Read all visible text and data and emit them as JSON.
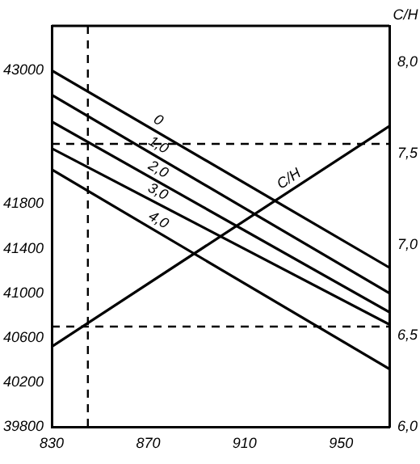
{
  "chart_data": {
    "type": "line",
    "y2label": "C/H",
    "x": [
      830,
      970
    ],
    "series": [
      {
        "name": "0",
        "color": "#000000",
        "values": [
          43000,
          41230
        ]
      },
      {
        "name": "1,0",
        "color": "#000000",
        "values": [
          42780,
          41000
        ]
      },
      {
        "name": "2,0",
        "color": "#000000",
        "values": [
          42540,
          40830
        ]
      },
      {
        "name": "3,0",
        "color": "#000000",
        "values": [
          42300,
          40720
        ]
      },
      {
        "name": "4,0",
        "color": "#000000",
        "values": [
          42110,
          40320
        ]
      },
      {
        "name": "C/H",
        "color": "#000000",
        "axis": "y2",
        "values": [
          6.44,
          7.65
        ]
      }
    ],
    "xlim": [
      830,
      970
    ],
    "xticks": [
      830,
      870,
      910,
      950
    ],
    "ylim": [
      39800,
      43400
    ],
    "yticks": [
      39800,
      40200,
      40600,
      41000,
      41400,
      41800,
      43000
    ],
    "y2lim": [
      6,
      8.2
    ],
    "y2ticks": [
      {
        "value": 6,
        "label": "6,0"
      },
      {
        "value": 6.5,
        "label": "6,5"
      },
      {
        "value": 7,
        "label": "7,0"
      },
      {
        "value": 7.5,
        "label": "7,5"
      },
      {
        "value": 8,
        "label": "8,0"
      }
    ],
    "ref_lines": [
      {
        "axis": "x",
        "value": 845,
        "line_style": "dashed"
      },
      {
        "axis": "y2",
        "value": 6.55,
        "line_style": "dashed"
      },
      {
        "axis": "y",
        "value": 42340,
        "line_style": "dashed"
      }
    ],
    "grid": false,
    "legend": false,
    "marker": "none",
    "line_style": "solid"
  }
}
